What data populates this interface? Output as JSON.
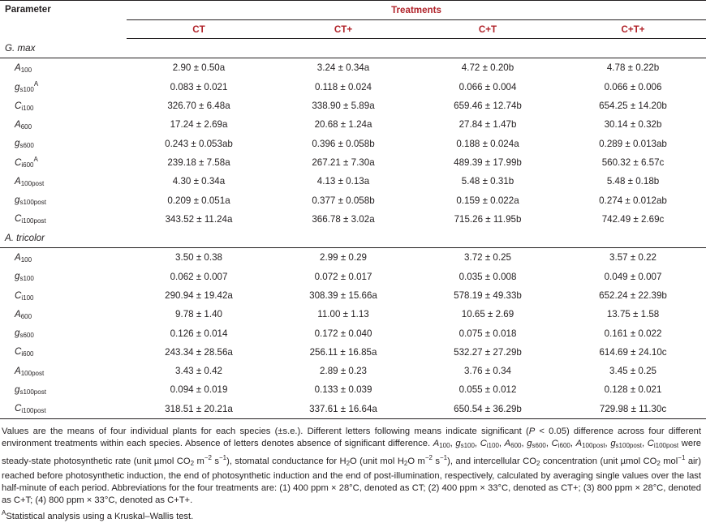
{
  "headers": {
    "parameter": "Parameter",
    "treatments": "Treatments",
    "columns": [
      "CT",
      "CT+",
      "C+T",
      "C+T+"
    ]
  },
  "groups": [
    {
      "name": "G. max",
      "rows": [
        {
          "base": "A",
          "sub": "100",
          "sup": "",
          "values": [
            "2.90 ± 0.50a",
            "3.24 ± 0.34a",
            "4.72 ± 0.20b",
            "4.78 ± 0.22b"
          ]
        },
        {
          "base": "g",
          "sub": "s100",
          "sup": "A",
          "values": [
            "0.083 ± 0.021",
            "0.118 ± 0.024",
            "0.066 ± 0.004",
            "0.066 ± 0.006"
          ]
        },
        {
          "base": "C",
          "sub": "i100",
          "sup": "",
          "values": [
            "326.70 ± 6.48a",
            "338.90 ± 5.89a",
            "659.46 ± 12.74b",
            "654.25 ± 14.20b"
          ]
        },
        {
          "base": "A",
          "sub": "600",
          "sup": "",
          "values": [
            "17.24 ± 2.69a",
            "20.68 ± 1.24a",
            "27.84 ± 1.47b",
            "30.14 ± 0.32b"
          ]
        },
        {
          "base": "g",
          "sub": "s600",
          "sup": "",
          "values": [
            "0.243 ± 0.053ab",
            "0.396 ± 0.058b",
            "0.188 ± 0.024a",
            "0.289 ± 0.013ab"
          ]
        },
        {
          "base": "C",
          "sub": "i600",
          "sup": "A",
          "values": [
            "239.18 ± 7.58a",
            "267.21 ± 7.30a",
            "489.39 ± 17.99b",
            "560.32 ± 6.57c"
          ]
        },
        {
          "base": "A",
          "sub": "100post",
          "sup": "",
          "values": [
            "4.30 ± 0.34a",
            "4.13 ± 0.13a",
            "5.48 ± 0.31b",
            "5.48 ± 0.18b"
          ]
        },
        {
          "base": "g",
          "sub": "s100post",
          "sup": "",
          "values": [
            "0.209 ± 0.051a",
            "0.377 ± 0.058b",
            "0.159 ± 0.022a",
            "0.274 ± 0.012ab"
          ]
        },
        {
          "base": "C",
          "sub": "i100post",
          "sup": "",
          "values": [
            "343.52 ± 11.24a",
            "366.78 ± 3.02a",
            "715.26 ± 11.95b",
            "742.49 ± 2.69c"
          ]
        }
      ]
    },
    {
      "name": "A. tricolor",
      "rows": [
        {
          "base": "A",
          "sub": "100",
          "sup": "",
          "values": [
            "3.50 ± 0.38",
            "2.99 ± 0.29",
            "3.72 ± 0.25",
            "3.57 ± 0.22"
          ]
        },
        {
          "base": "g",
          "sub": "s100",
          "sup": "",
          "values": [
            "0.062 ± 0.007",
            "0.072 ± 0.017",
            "0.035 ± 0.008",
            "0.049 ± 0.007"
          ]
        },
        {
          "base": "C",
          "sub": "i100",
          "sup": "",
          "values": [
            "290.94 ± 19.42a",
            "308.39 ± 15.66a",
            "578.19 ± 49.33b",
            "652.24 ± 22.39b"
          ]
        },
        {
          "base": "A",
          "sub": "600",
          "sup": "",
          "values": [
            "9.78 ± 1.40",
            "11.00 ± 1.13",
            "10.65 ± 2.69",
            "13.75 ± 1.58"
          ]
        },
        {
          "base": "g",
          "sub": "s600",
          "sup": "",
          "values": [
            "0.126 ± 0.014",
            "0.172 ± 0.040",
            "0.075 ± 0.018",
            "0.161 ± 0.022"
          ]
        },
        {
          "base": "C",
          "sub": "i600",
          "sup": "",
          "values": [
            "243.34 ± 28.56a",
            "256.11 ± 16.85a",
            "532.27 ± 27.29b",
            "614.69 ± 24.10c"
          ]
        },
        {
          "base": "A",
          "sub": "100post",
          "sup": "",
          "values": [
            "3.43 ± 0.42",
            "2.89 ± 0.23",
            "3.76 ± 0.34",
            "3.45 ± 0.25"
          ]
        },
        {
          "base": "g",
          "sub": "s100post",
          "sup": "",
          "values": [
            "0.094 ± 0.019",
            "0.133 ± 0.039",
            "0.055 ± 0.012",
            "0.128 ± 0.021"
          ]
        },
        {
          "base": "C",
          "sub": "i100post",
          "sup": "",
          "values": [
            "318.51 ± 20.21a",
            "337.61 ± 16.64a",
            "650.54 ± 36.29b",
            "729.98 ± 11.30c"
          ]
        }
      ]
    }
  ],
  "footnote": {
    "main": "Values are the means of four individual plants for each species (±s.e.). Different letters following means indicate significant (P < 0.05) difference across four different environment treatments within each species. Absence of letters denotes absence of significant difference. A100, gs100, Ci100, A600, gs600, Ci600, A100post, gs100post, Ci100post were steady-state photosynthetic rate (unit µmol CO2 m−2 s−1), stomatal conductance for H2O (unit mol H2O m−2 s−1), and intercellular CO2 concentration (unit µmol CO2 mol−1 air) reached before photosynthetic induction, the end of photosynthetic induction and the end of post-illumination, respectively, calculated by averaging single values over the last half-minute of each period. Abbreviations for the four treatments are: (1) 400 ppm × 28°C, denoted as CT; (2) 400 ppm × 33°C, denoted as CT+; (3) 800 ppm × 28°C, denoted as C+T; (4) 800 ppm × 33°C, denoted as C+T+.",
    "sup_marker": "A",
    "sup_text": "Statistical analysis using a Kruskal–Wallis test."
  }
}
